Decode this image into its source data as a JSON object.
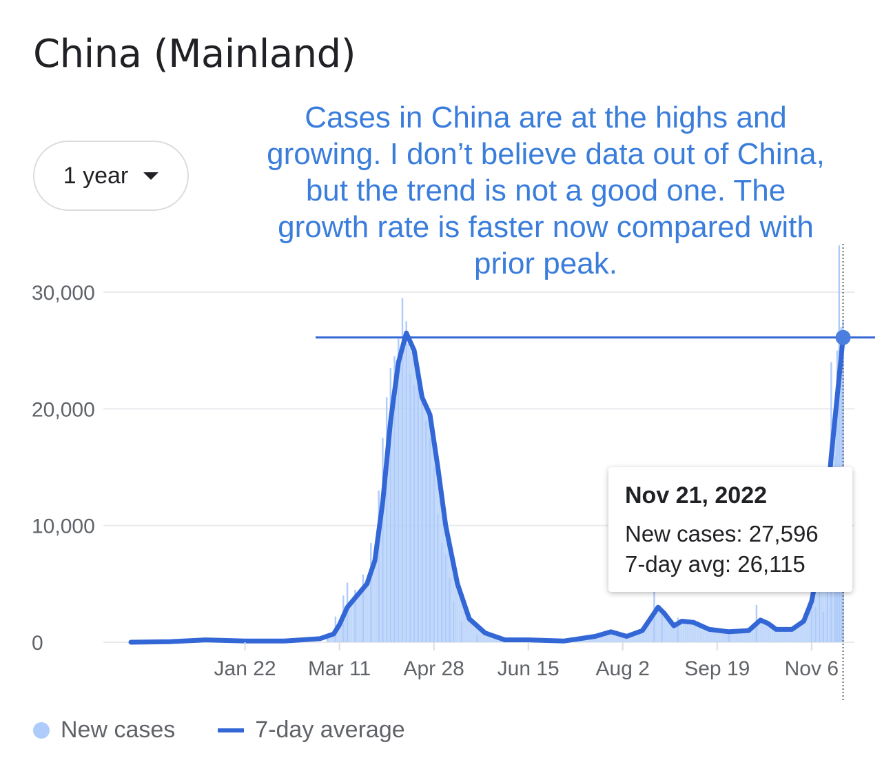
{
  "title": "China (Mainland)",
  "range_selector": {
    "label": "1 year"
  },
  "annotation": {
    "lines": [
      "Cases in China are at the highs and",
      "growing. I don’t believe data out of China,",
      "but the trend is not a good one. The",
      "growth rate is faster now compared with",
      "prior peak."
    ]
  },
  "tooltip": {
    "date": "Nov 21, 2022",
    "new_cases": "New cases: 27,596",
    "avg": "7-day avg: 26,115"
  },
  "legend": {
    "new_cases": "New cases",
    "avg": "7-day average"
  },
  "colors": {
    "bars": "#aecbfa",
    "line": "#3367d6",
    "annotation": "#3a7ddb",
    "grid": "#e8eaed"
  },
  "chart_data": {
    "type": "bar",
    "title": "China (Mainland)",
    "y_ticks": [
      0,
      10000,
      20000,
      30000
    ],
    "y_tick_labels": [
      "0",
      "10,000",
      "20,000",
      "30,000"
    ],
    "ylim": [
      0,
      30000
    ],
    "x_ticks": [
      "Jan 22",
      "Mar 11",
      "Apr 28",
      "Jun 15",
      "Aug 2",
      "Sep 19",
      "Nov 6"
    ],
    "x_tick_days": [
      58,
      106,
      154,
      202,
      250,
      298,
      346
    ],
    "grid": true,
    "legend_position": "bottom-left",
    "series": [
      {
        "name": "7-day average",
        "type": "line",
        "points": [
          [
            0,
            0
          ],
          [
            20,
            50
          ],
          [
            38,
            200
          ],
          [
            58,
            100
          ],
          [
            78,
            100
          ],
          [
            96,
            300
          ],
          [
            103,
            700
          ],
          [
            106,
            1500
          ],
          [
            110,
            3000
          ],
          [
            115,
            4000
          ],
          [
            120,
            5000
          ],
          [
            124,
            7000
          ],
          [
            128,
            12000
          ],
          [
            132,
            19000
          ],
          [
            136,
            24000
          ],
          [
            140,
            26500
          ],
          [
            144,
            25000
          ],
          [
            148,
            21000
          ],
          [
            152,
            19500
          ],
          [
            156,
            15000
          ],
          [
            160,
            10000
          ],
          [
            166,
            5000
          ],
          [
            172,
            2000
          ],
          [
            180,
            800
          ],
          [
            190,
            200
          ],
          [
            202,
            200
          ],
          [
            220,
            100
          ],
          [
            236,
            500
          ],
          [
            244,
            900
          ],
          [
            252,
            500
          ],
          [
            260,
            1000
          ],
          [
            264,
            2000
          ],
          [
            268,
            3000
          ],
          [
            271,
            2500
          ],
          [
            276,
            1400
          ],
          [
            280,
            1800
          ],
          [
            286,
            1700
          ],
          [
            294,
            1100
          ],
          [
            304,
            900
          ],
          [
            314,
            1000
          ],
          [
            320,
            1900
          ],
          [
            324,
            1600
          ],
          [
            328,
            1100
          ],
          [
            336,
            1100
          ],
          [
            342,
            1800
          ],
          [
            346,
            3500
          ],
          [
            350,
            7000
          ],
          [
            354,
            12000
          ],
          [
            356,
            16000
          ],
          [
            359,
            21000
          ],
          [
            362,
            26115
          ]
        ]
      },
      {
        "name": "New cases",
        "type": "bar",
        "points": [
          [
            100,
            500
          ],
          [
            104,
            2200
          ],
          [
            108,
            4000
          ],
          [
            110,
            5100
          ],
          [
            114,
            4500
          ],
          [
            118,
            5800
          ],
          [
            122,
            8500
          ],
          [
            126,
            13000
          ],
          [
            128,
            17500
          ],
          [
            130,
            21000
          ],
          [
            132,
            23500
          ],
          [
            134,
            24500
          ],
          [
            136,
            26000
          ],
          [
            138,
            29500
          ],
          [
            140,
            27500
          ],
          [
            142,
            23000
          ],
          [
            144,
            22000
          ],
          [
            146,
            23000
          ],
          [
            148,
            21000
          ],
          [
            150,
            19000
          ],
          [
            152,
            17500
          ],
          [
            154,
            15000
          ],
          [
            156,
            11000
          ],
          [
            158,
            8500
          ],
          [
            160,
            7500
          ],
          [
            162,
            5500
          ],
          [
            164,
            3500
          ],
          [
            168,
            1800
          ],
          [
            176,
            600
          ],
          [
            266,
            4500
          ],
          [
            270,
            2600
          ],
          [
            278,
            2100
          ],
          [
            304,
            900
          ],
          [
            318,
            3200
          ],
          [
            346,
            3600
          ],
          [
            348,
            3000
          ],
          [
            350,
            5800
          ],
          [
            352,
            2600
          ],
          [
            354,
            4500
          ],
          [
            356,
            24000
          ],
          [
            358,
            16000
          ],
          [
            359,
            25000
          ],
          [
            360,
            34000
          ],
          [
            361,
            27000
          ],
          [
            362,
            27596
          ]
        ]
      }
    ],
    "reference_line_value": 26115,
    "highlight_day": 362
  }
}
